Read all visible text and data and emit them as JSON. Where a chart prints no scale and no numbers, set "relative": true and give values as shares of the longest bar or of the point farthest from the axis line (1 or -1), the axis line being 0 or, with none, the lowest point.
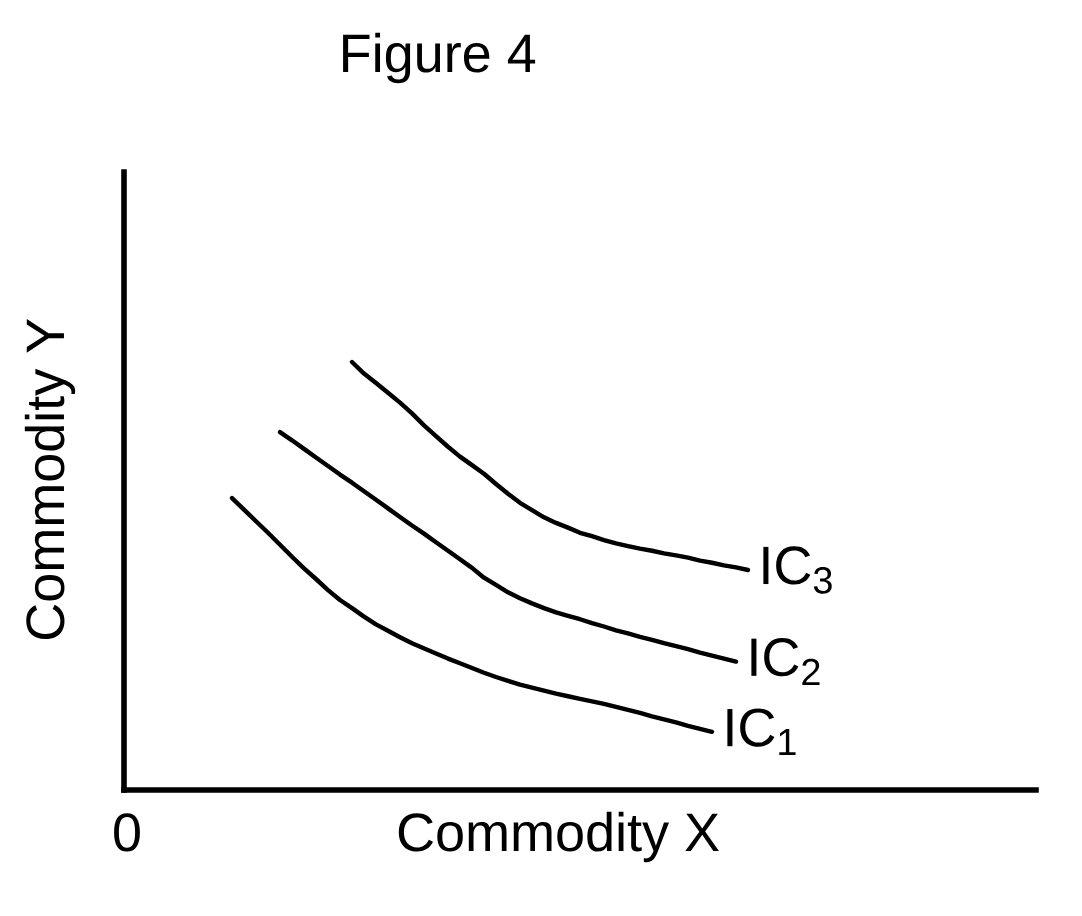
{
  "chart_data": {
    "type": "line",
    "title": "Figure 4",
    "xlabel": "Commodity X",
    "ylabel": "Commodity Y",
    "relative": true,
    "categories": [
      null,
      null,
      null,
      null,
      null,
      null,
      null,
      null,
      null,
      null,
      null,
      null,
      null,
      null,
      null,
      null,
      null,
      null,
      null,
      null,
      null,
      null,
      null,
      null,
      null,
      null,
      null,
      null,
      null,
      null,
      null,
      null,
      null,
      null,
      null,
      null,
      null,
      null,
      null,
      null,
      null,
      null,
      null,
      null,
      null,
      null,
      null,
      null,
      null,
      null,
      null,
      null,
      null,
      null,
      null,
      null,
      null,
      null,
      null,
      null,
      null,
      null,
      null,
      null,
      null,
      null,
      null,
      null,
      null,
      null,
      null,
      null,
      null,
      null,
      null,
      null,
      null
    ],
    "series": [
      {
        "name": "IC$_{1}$",
        "color": "#000000",
        "values": [
          null,
          null,
          null,
          null,
          null,
          null,
          null,
          null,
          null,
          0.682,
          0.655,
          0.628,
          0.601,
          0.573,
          0.545,
          0.518,
          0.493,
          0.467,
          0.444,
          0.425,
          0.405,
          0.387,
          0.372,
          0.357,
          0.343,
          0.331,
          0.319,
          0.307,
          0.296,
          0.285,
          0.274,
          0.264,
          0.255,
          0.246,
          0.239,
          0.232,
          0.225,
          0.219,
          0.213,
          0.207,
          0.201,
          0.194,
          0.187,
          0.18,
          0.172,
          0.165,
          0.158,
          0.15,
          0.143,
          0.136,
          null,
          null,
          null,
          null,
          null,
          null,
          null,
          null,
          null,
          null,
          null,
          null,
          null,
          null,
          null,
          null,
          null,
          null,
          null,
          null,
          null,
          null,
          null,
          null,
          null,
          null,
          null
        ]
      },
      {
        "name": "IC$_{2}$",
        "color": "#000000",
        "values": [
          null,
          null,
          null,
          null,
          null,
          null,
          null,
          null,
          null,
          null,
          null,
          null,
          null,
          0.836,
          0.817,
          0.797,
          0.777,
          0.757,
          0.737,
          0.718,
          0.698,
          0.678,
          0.658,
          0.638,
          0.618,
          0.599,
          0.579,
          0.559,
          0.539,
          0.519,
          0.496,
          0.479,
          0.462,
          0.448,
          0.436,
          0.425,
          0.415,
          0.407,
          0.399,
          0.39,
          0.382,
          0.373,
          0.366,
          0.358,
          0.351,
          0.343,
          0.336,
          0.329,
          0.321,
          0.314,
          0.307,
          0.3,
          null,
          null,
          null,
          null,
          null,
          null,
          null,
          null,
          null,
          null,
          null,
          null,
          null,
          null,
          null,
          null,
          null,
          null,
          null,
          null,
          null,
          null,
          null,
          null,
          null
        ]
      },
      {
        "name": "IC$_{3}$",
        "color": "#000000",
        "values": [
          null,
          null,
          null,
          null,
          null,
          null,
          null,
          null,
          null,
          null,
          null,
          null,
          null,
          null,
          null,
          null,
          null,
          null,
          null,
          1.0,
          0.973,
          0.951,
          0.928,
          0.905,
          0.88,
          0.852,
          0.827,
          0.802,
          0.779,
          0.759,
          0.739,
          0.715,
          0.692,
          0.671,
          0.654,
          0.637,
          0.624,
          0.613,
          0.601,
          0.593,
          0.584,
          0.576,
          0.57,
          0.564,
          0.559,
          0.553,
          0.548,
          0.543,
          0.536,
          0.531,
          0.525,
          0.52,
          0.514,
          null,
          null,
          null,
          null,
          null,
          null,
          null,
          null,
          null,
          null,
          null,
          null,
          null,
          null,
          null,
          null,
          null,
          null,
          null,
          null,
          null,
          null,
          null,
          null
        ]
      }
    ],
    "annotations": [
      "0"
    ]
  }
}
